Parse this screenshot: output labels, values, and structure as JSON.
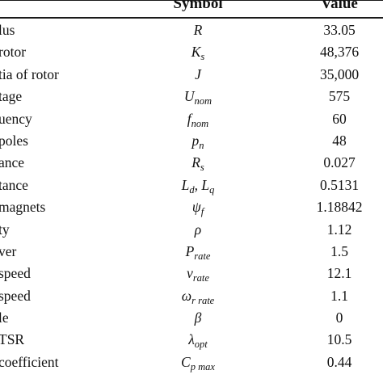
{
  "header": {
    "symbol": "Symbol",
    "value": "Value"
  },
  "rows": [
    {
      "parameter": "lus",
      "symbol": "R",
      "sub": "",
      "value": "33.05"
    },
    {
      "parameter": "rotor",
      "symbol": "K",
      "sub": "s",
      "value": "48,376"
    },
    {
      "parameter": "tia of rotor",
      "symbol": "J",
      "sub": "",
      "value": "35,000"
    },
    {
      "parameter": "tage",
      "symbol": "U",
      "sub": "nom",
      "value": "575"
    },
    {
      "parameter": "uency",
      "symbol": "f",
      "sub": "nom",
      "value": "60"
    },
    {
      "parameter": "poles",
      "symbol": "p",
      "sub": "n",
      "value": "48"
    },
    {
      "parameter": "ance",
      "symbol": "R",
      "sub": "s",
      "value": "0.027"
    },
    {
      "parameter": "tance",
      "symbol": "L",
      "sub": "d",
      "symbol2": ", L",
      "sub2": "q",
      "value": "0.5131"
    },
    {
      "parameter": "magnets",
      "symbol": "ψ",
      "sub": "f",
      "value": "1.18842"
    },
    {
      "parameter": "ty",
      "symbol": "ρ",
      "sub": "",
      "value": "1.12"
    },
    {
      "parameter": "ver",
      "symbol": "P",
      "sub": "rate",
      "value": "1.5"
    },
    {
      "parameter": "speed",
      "symbol": "v",
      "sub": "rate",
      "value": "12.1"
    },
    {
      "parameter": "speed",
      "symbol": "ω",
      "sub": "r rate",
      "value": "1.1"
    },
    {
      "parameter": "le",
      "symbol": "β",
      "sub": "",
      "value": "0"
    },
    {
      "parameter": "TSR",
      "symbol": "λ",
      "sub": "opt",
      "value": "10.5"
    },
    {
      "parameter": "coefficient",
      "symbol": "C",
      "sub": "p max",
      "value": "0.44"
    }
  ]
}
